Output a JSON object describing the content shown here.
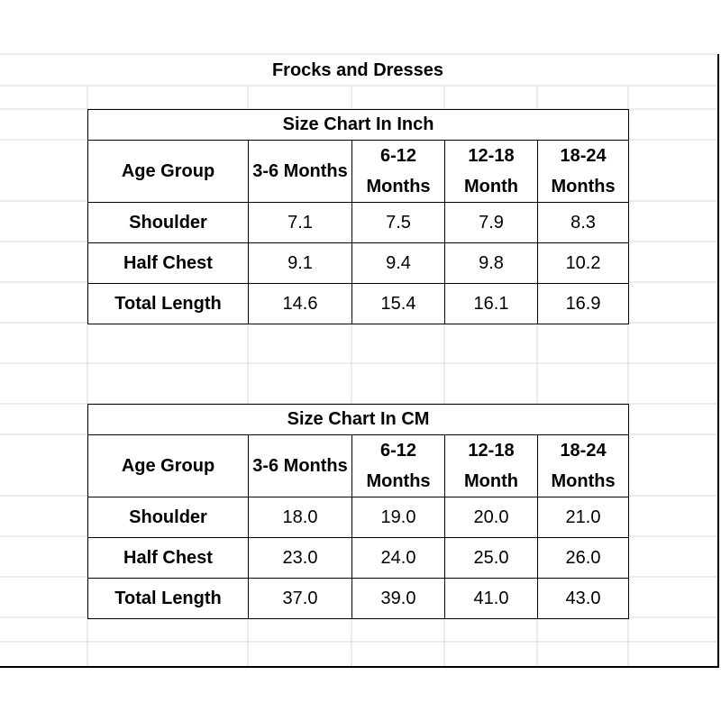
{
  "title": "Frocks and Dresses",
  "tables": [
    {
      "caption": "Size Chart In Inch",
      "header": [
        "Age Group",
        "3-6 Months",
        "6-12 Months",
        "12-18 Month",
        "18-24 Months"
      ],
      "rows": [
        [
          "Shoulder",
          "7.1",
          "7.5",
          "7.9",
          "8.3"
        ],
        [
          "Half Chest",
          "9.1",
          "9.4",
          "9.8",
          "10.2"
        ],
        [
          "Total Length",
          "14.6",
          "15.4",
          "16.1",
          "16.9"
        ]
      ]
    },
    {
      "caption": "Size Chart In CM",
      "header": [
        "Age Group",
        "3-6 Months",
        "6-12 Months",
        "12-18 Month",
        "18-24 Months"
      ],
      "rows": [
        [
          "Shoulder",
          "18.0",
          "19.0",
          "20.0",
          "21.0"
        ],
        [
          "Half Chest",
          "23.0",
          "24.0",
          "25.0",
          "26.0"
        ],
        [
          "Total Length",
          "37.0",
          "39.0",
          "41.0",
          "43.0"
        ]
      ]
    }
  ]
}
